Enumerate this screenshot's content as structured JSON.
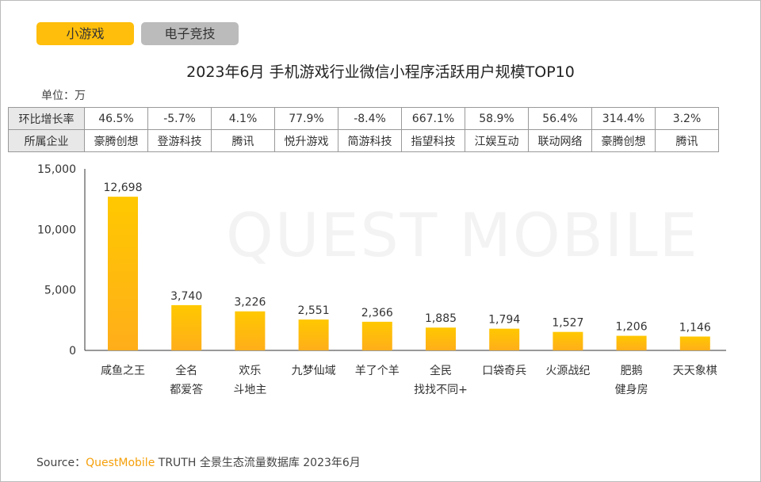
{
  "tabs": [
    {
      "label": "小游戏",
      "active": true
    },
    {
      "label": "电子竞技",
      "active": false
    }
  ],
  "unit": "单位：万",
  "table": {
    "row_labels": [
      "环比增长率",
      "所属企业"
    ],
    "growth": [
      "46.5%",
      "-5.7%",
      "4.1%",
      "77.9%",
      "-8.4%",
      "667.1%",
      "58.9%",
      "56.4%",
      "314.4%",
      "3.2%"
    ],
    "company": [
      "豪腾创想",
      "登游科技",
      "腾讯",
      "悦升游戏",
      "简游科技",
      "指望科技",
      "江娱互动",
      "联动网络",
      "豪腾创想",
      "腾讯"
    ]
  },
  "watermark": "QUEST MOBILE",
  "source": {
    "prefix": "Source：",
    "brand": "QuestMobile",
    "suffix": "TRUTH 全景生态流量数据库 2023年6月"
  },
  "colors": {
    "bar_top": "#FFC800",
    "bar_bottom": "#FFAE1A",
    "active_tab": "#FFBE0B",
    "inactive_tab": "#BBBBBB"
  },
  "chart_data": {
    "type": "bar",
    "title": "2023年6月 手机游戏行业微信小程序活跃用户规模TOP10",
    "categories": [
      [
        "咸鱼之王"
      ],
      [
        "全名",
        "都爱答"
      ],
      [
        "欢乐",
        "斗地主"
      ],
      [
        "九梦仙域"
      ],
      [
        "羊了个羊"
      ],
      [
        "全民",
        "找找不同+"
      ],
      [
        "口袋奇兵"
      ],
      [
        "火源战纪"
      ],
      [
        "肥鹅",
        "健身房"
      ],
      [
        "天天象棋"
      ]
    ],
    "values": [
      12698,
      3740,
      3226,
      2551,
      2366,
      1885,
      1794,
      1527,
      1206,
      1146
    ],
    "data_labels": [
      "12,698",
      "3,740",
      "3,226",
      "2,551",
      "2,366",
      "1,885",
      "1,794",
      "1,527",
      "1,206",
      "1,146"
    ],
    "ylim": [
      0,
      15000
    ],
    "yticks": [
      "0",
      "5,000",
      "10,000",
      "15,000"
    ],
    "grid": false
  }
}
